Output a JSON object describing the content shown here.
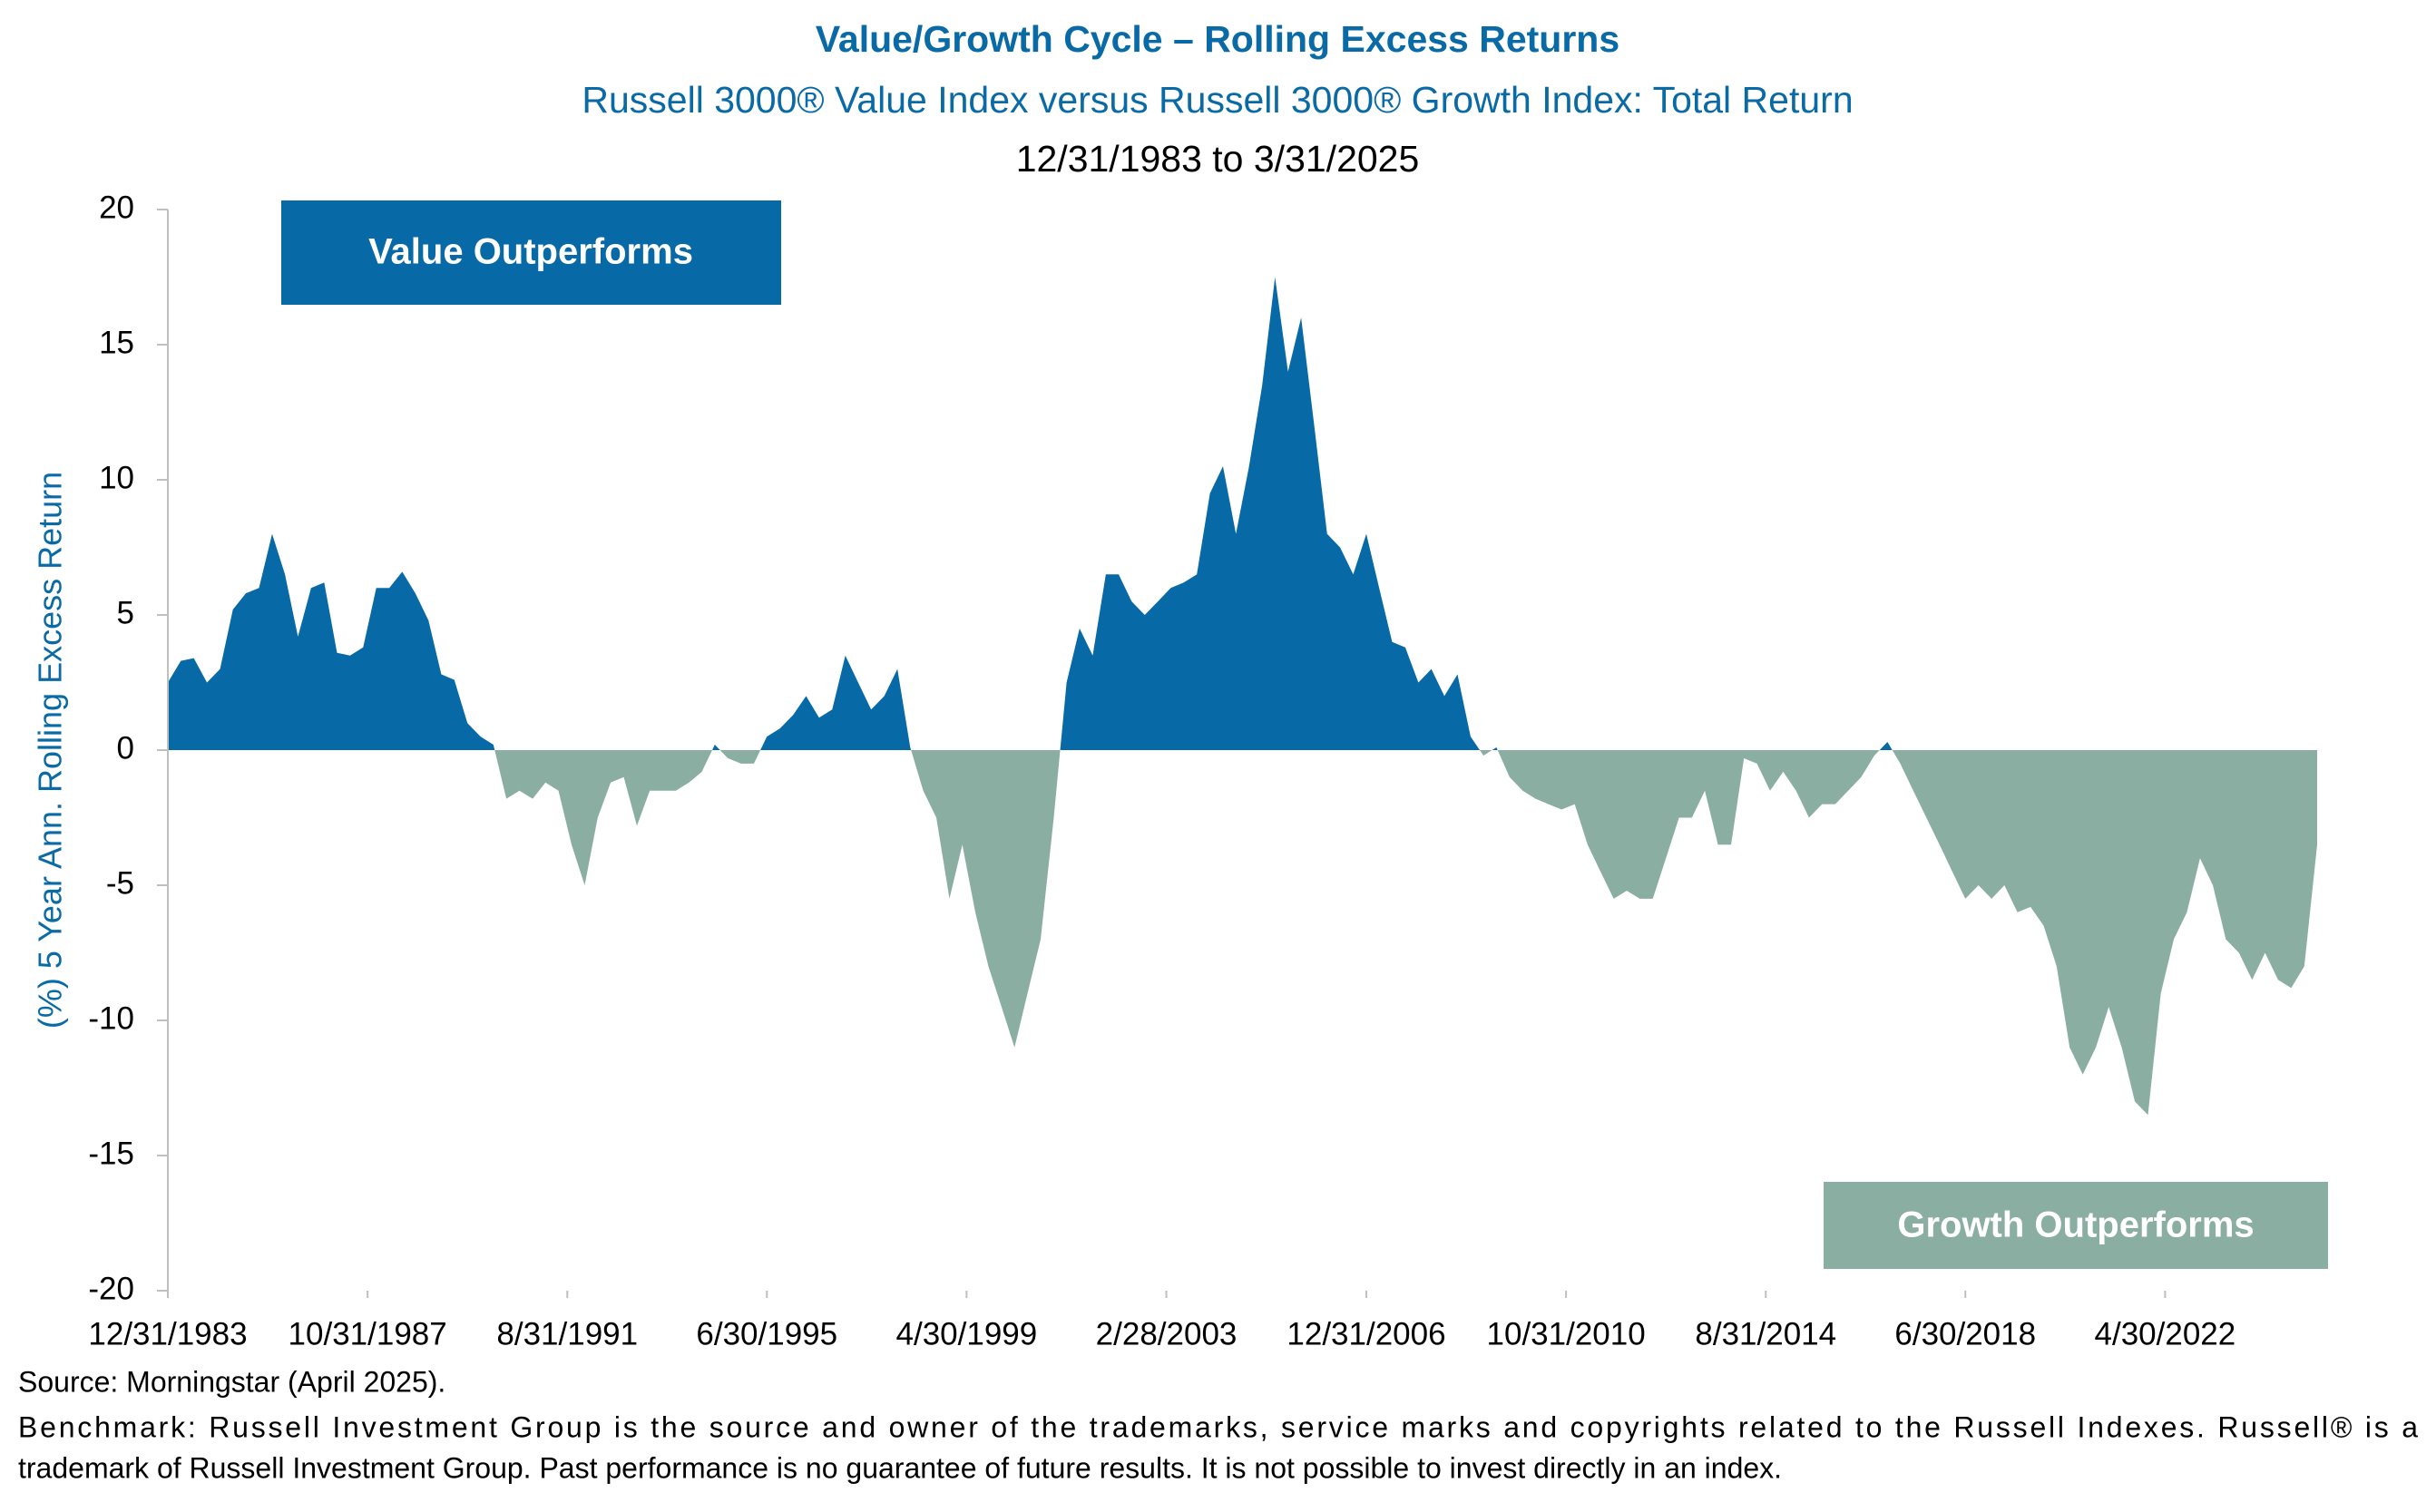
{
  "chart_data": {
    "type": "area",
    "title": "Value/Growth Cycle – Rolling Excess Returns",
    "subtitle": "Russell 3000® Value Index versus Russell 3000® Growth Index: Total Return",
    "date_range": "12/31/1983 to 3/31/2025",
    "y_axis_label": "(%) 5 Year Ann. Rolling Excess Return",
    "annotations": [
      "Value Outperforms",
      "Growth Outperforms"
    ],
    "footnotes": [
      "Source: Morningstar (April 2025).",
      "Benchmark: Russell Investment Group is the source and owner of the trademarks, service marks and copyrights related to the Russell Indexes. Russell® is a",
      "trademark of Russell Investment Group. Past performance is no guarantee of future results. It is not possible to invest directly in an index."
    ],
    "x": [
      "1983-12-31",
      "1984-03-31",
      "1984-06-30",
      "1984-09-30",
      "1984-12-31",
      "1985-03-31",
      "1985-06-30",
      "1985-09-30",
      "1985-12-31",
      "1986-03-31",
      "1986-06-30",
      "1986-09-30",
      "1986-12-31",
      "1987-03-31",
      "1987-06-30",
      "1987-09-30",
      "1987-12-31",
      "1988-03-31",
      "1988-06-30",
      "1988-09-30",
      "1988-12-31",
      "1989-03-31",
      "1989-06-30",
      "1989-09-30",
      "1989-12-31",
      "1990-03-31",
      "1990-06-30",
      "1990-09-30",
      "1990-12-31",
      "1991-03-31",
      "1991-06-30",
      "1991-09-30",
      "1991-12-31",
      "1992-03-31",
      "1992-06-30",
      "1992-09-30",
      "1992-12-31",
      "1993-03-31",
      "1993-06-30",
      "1993-09-30",
      "1993-12-31",
      "1994-03-31",
      "1994-06-30",
      "1994-09-30",
      "1994-12-31",
      "1995-03-31",
      "1995-06-30",
      "1995-09-30",
      "1995-12-31",
      "1996-03-31",
      "1996-06-30",
      "1996-09-30",
      "1996-12-31",
      "1997-03-31",
      "1997-06-30",
      "1997-09-30",
      "1997-12-31",
      "1998-03-31",
      "1998-06-30",
      "1998-09-30",
      "1998-12-31",
      "1999-03-31",
      "1999-06-30",
      "1999-09-30",
      "1999-12-31",
      "2000-03-31",
      "2000-06-30",
      "2000-09-30",
      "2000-12-31",
      "2001-03-31",
      "2001-06-30",
      "2001-09-30",
      "2001-12-31",
      "2002-03-31",
      "2002-06-30",
      "2002-09-30",
      "2002-12-31",
      "2003-03-31",
      "2003-06-30",
      "2003-09-30",
      "2003-12-31",
      "2004-03-31",
      "2004-06-30",
      "2004-09-30",
      "2004-12-31",
      "2005-03-31",
      "2005-06-30",
      "2005-09-30",
      "2005-12-31",
      "2006-03-31",
      "2006-06-30",
      "2006-09-30",
      "2006-12-31",
      "2007-03-31",
      "2007-06-30",
      "2007-09-30",
      "2007-12-31",
      "2008-03-31",
      "2008-06-30",
      "2008-09-30",
      "2008-12-31",
      "2009-03-31",
      "2009-06-30",
      "2009-09-30",
      "2009-12-31",
      "2010-03-31",
      "2010-06-30",
      "2010-09-30",
      "2010-12-31",
      "2011-03-31",
      "2011-06-30",
      "2011-09-30",
      "2011-12-31",
      "2012-03-31",
      "2012-06-30",
      "2012-09-30",
      "2012-12-31",
      "2013-03-31",
      "2013-06-30",
      "2013-09-30",
      "2013-12-31",
      "2014-03-31",
      "2014-06-30",
      "2014-09-30",
      "2014-12-31",
      "2015-03-31",
      "2015-06-30",
      "2015-09-30",
      "2015-12-31",
      "2016-03-31",
      "2016-06-30",
      "2016-09-30",
      "2016-12-31",
      "2017-03-31",
      "2017-06-30",
      "2017-09-30",
      "2017-12-31",
      "2018-03-31",
      "2018-06-30",
      "2018-09-30",
      "2018-12-31",
      "2019-03-31",
      "2019-06-30",
      "2019-09-30",
      "2019-12-31",
      "2020-03-31",
      "2020-06-30",
      "2020-09-30",
      "2020-12-31",
      "2021-03-31",
      "2021-06-30",
      "2021-09-30",
      "2021-12-31",
      "2022-03-31",
      "2022-06-30",
      "2022-09-30",
      "2022-12-31",
      "2023-03-31",
      "2023-06-30",
      "2023-09-30",
      "2023-12-31",
      "2024-03-31",
      "2024-06-30",
      "2024-09-30",
      "2024-12-31",
      "2025-03-31"
    ],
    "series": [
      {
        "color": "#0869a7",
        "negative_color": "#8aaea2",
        "values": [
          2.5,
          3.3,
          3.4,
          2.5,
          3.0,
          5.2,
          5.8,
          6.0,
          8.0,
          6.5,
          4.2,
          6.0,
          6.2,
          3.6,
          3.5,
          3.8,
          6.0,
          6.0,
          6.6,
          5.8,
          4.8,
          2.8,
          2.6,
          1.0,
          0.5,
          0.2,
          -1.8,
          -1.5,
          -1.8,
          -1.2,
          -1.5,
          -3.5,
          -5.0,
          -2.5,
          -1.2,
          -1.0,
          -2.8,
          -1.5,
          -1.5,
          -1.5,
          -1.2,
          -0.8,
          0.2,
          -0.3,
          -0.5,
          -0.5,
          0.5,
          0.8,
          1.3,
          2.0,
          1.2,
          1.5,
          3.5,
          2.5,
          1.5,
          2.0,
          3.0,
          0.1,
          -1.5,
          -2.5,
          -5.5,
          -3.5,
          -6.0,
          -8.0,
          -9.5,
          -11.0,
          -9.0,
          -7.0,
          -2.5,
          2.5,
          4.5,
          3.5,
          6.5,
          6.5,
          5.5,
          5.0,
          5.5,
          6.0,
          6.2,
          6.5,
          9.5,
          10.5,
          8.0,
          10.5,
          13.5,
          17.5,
          14.0,
          16.0,
          12.0,
          8.0,
          7.5,
          6.5,
          8.0,
          6.0,
          4.0,
          3.8,
          2.5,
          3.0,
          2.0,
          2.8,
          0.5,
          -0.2,
          0.1,
          -1.0,
          -1.5,
          -1.8,
          -2.0,
          -2.2,
          -2.0,
          -3.5,
          -4.5,
          -5.5,
          -5.2,
          -5.5,
          -5.5,
          -4.0,
          -2.5,
          -2.5,
          -1.5,
          -3.5,
          -3.5,
          -0.3,
          -0.5,
          -1.5,
          -0.8,
          -1.5,
          -2.5,
          -2.0,
          -2.0,
          -1.5,
          -1.0,
          -0.2,
          0.3,
          -0.5,
          -1.5,
          -2.5,
          -3.5,
          -4.5,
          -5.5,
          -5.0,
          -5.5,
          -5.0,
          -6.0,
          -5.8,
          -6.5,
          -8.0,
          -11.0,
          -12.0,
          -11.0,
          -9.5,
          -11.0,
          -13.0,
          -13.5,
          -9.0,
          -7.0,
          -6.0,
          -4.0,
          -5.0,
          -7.0,
          -7.5,
          -8.5,
          -7.5,
          -8.5,
          -8.8,
          -8.0,
          -3.5
        ]
      }
    ],
    "xlim": [
      "1983-12-31",
      "2025-03-31"
    ],
    "xticks": [
      {
        "value": "1983-12-31",
        "label": "12/31/1983"
      },
      {
        "value": "1987-10-31",
        "label": "10/31/1987"
      },
      {
        "value": "1991-08-31",
        "label": "8/31/1991"
      },
      {
        "value": "1995-06-30",
        "label": "6/30/1995"
      },
      {
        "value": "1999-04-30",
        "label": "4/30/1999"
      },
      {
        "value": "2003-02-28",
        "label": "2/28/2003"
      },
      {
        "value": "2006-12-31",
        "label": "12/31/2006"
      },
      {
        "value": "2010-10-31",
        "label": "10/31/2010"
      },
      {
        "value": "2014-08-31",
        "label": "8/31/2014"
      },
      {
        "value": "2018-06-30",
        "label": "6/30/2018"
      },
      {
        "value": "2022-04-30",
        "label": "4/30/2022"
      }
    ],
    "ylim": [
      -20,
      20
    ],
    "yticks": [
      -20,
      -15,
      -10,
      -5,
      0,
      5,
      10,
      15,
      20
    ]
  }
}
